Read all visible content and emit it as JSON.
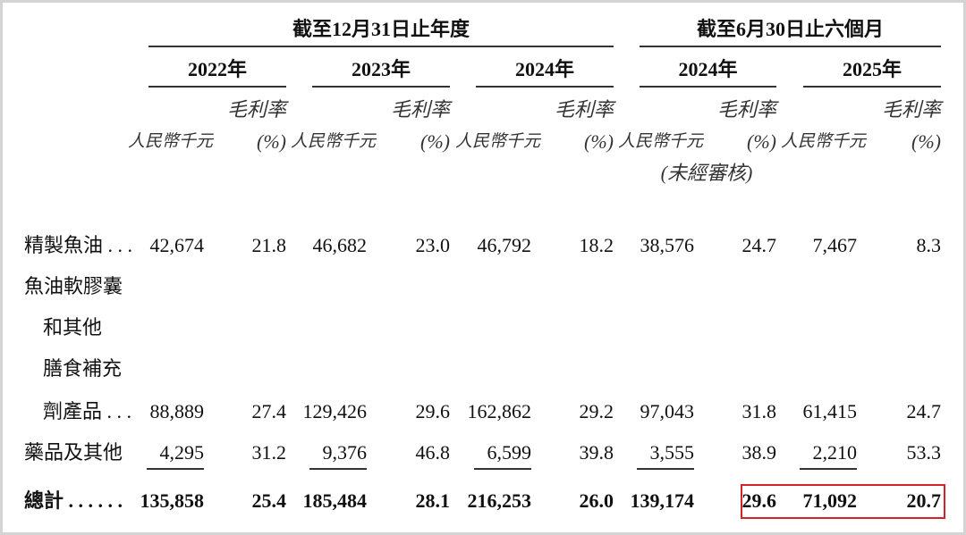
{
  "header": {
    "group_full_year": "截至12月31日止年度",
    "group_six_months": "截至6月30日止六個月",
    "years": [
      "2022年",
      "2023年",
      "2024年",
      "2024年",
      "2025年"
    ],
    "amount_label": "人民幣千元",
    "margin_label": "毛利率",
    "percent_label": "(%)",
    "unaudited_label": "(未經審核)"
  },
  "rows": [
    {
      "label": "精製魚油 . . .",
      "values": [
        "42,674",
        "21.8",
        "46,682",
        "23.0",
        "46,792",
        "18.2",
        "38,576",
        "24.7",
        "7,467",
        "8.3"
      ]
    },
    {
      "label_lines": [
        "魚油軟膠囊",
        "和其他",
        "膳食補充"
      ],
      "label": "劑產品 . . .",
      "values": [
        "88,889",
        "27.4",
        "129,426",
        "29.6",
        "162,862",
        "29.2",
        "97,043",
        "31.8",
        "61,415",
        "24.7"
      ]
    },
    {
      "label": "藥品及其他",
      "values": [
        "4,295",
        "31.2",
        "9,376",
        "46.8",
        "6,599",
        "39.8",
        "3,555",
        "38.9",
        "2,210",
        "53.3"
      ]
    },
    {
      "label": "總計 . . . . . .",
      "values": [
        "135,858",
        "25.4",
        "185,484",
        "28.1",
        "216,253",
        "26.0",
        "139,174",
        "29.6",
        "71,092",
        "20.7"
      ],
      "bold": true
    }
  ],
  "highlight_color": "#d2232a"
}
